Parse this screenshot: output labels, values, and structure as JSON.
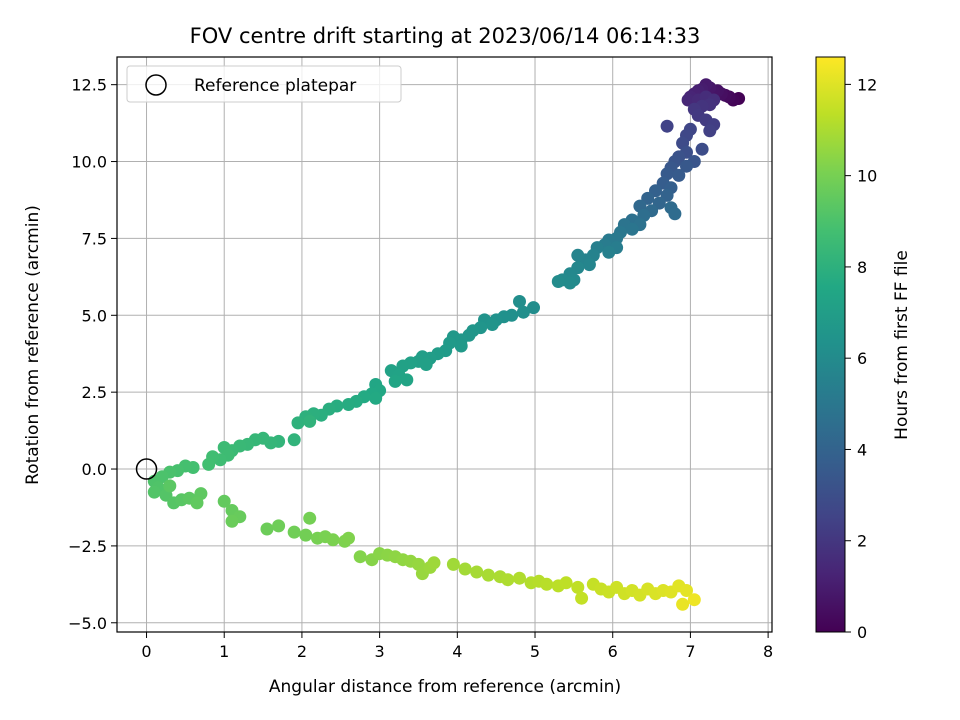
{
  "chart_data": {
    "type": "scatter",
    "title": "FOV centre drift starting at 2023/06/14 06:14:33",
    "xlabel": "Angular distance from reference (arcmin)",
    "ylabel": "Rotation from reference (arcmin)",
    "xlim": [
      -0.38,
      8.05
    ],
    "ylim": [
      -5.3,
      13.4
    ],
    "xticks": [
      0,
      1,
      2,
      3,
      4,
      5,
      6,
      7,
      8
    ],
    "xtick_labels": [
      "0",
      "1",
      "2",
      "3",
      "4",
      "5",
      "6",
      "7",
      "8"
    ],
    "yticks": [
      -5.0,
      -2.5,
      0.0,
      2.5,
      5.0,
      7.5,
      10.0,
      12.5
    ],
    "ytick_labels": [
      "−5.0",
      "−2.5",
      "0.0",
      "2.5",
      "5.0",
      "7.5",
      "10.0",
      "12.5"
    ],
    "grid": true,
    "legend": {
      "position": "top-left",
      "entries": [
        {
          "label": "Reference platepar",
          "marker": "open-circle",
          "color": "#000000"
        }
      ]
    },
    "reference_point": {
      "x": 0,
      "y": 0
    },
    "colorbar": {
      "label": "Hours from first FF file",
      "colormap": "viridis",
      "range": [
        0,
        12.6
      ],
      "ticks": [
        0,
        2,
        4,
        6,
        8,
        10,
        12
      ],
      "tick_labels": [
        "0",
        "2",
        "4",
        "6",
        "8",
        "10",
        "12"
      ]
    },
    "series": [
      {
        "points": [
          [
            7.62,
            12.05,
            0.05
          ],
          [
            7.55,
            12.0,
            0.15
          ],
          [
            7.5,
            12.1,
            0.25
          ],
          [
            7.45,
            12.15,
            0.35
          ],
          [
            7.4,
            12.2,
            0.5
          ],
          [
            7.35,
            12.3,
            0.6
          ],
          [
            7.3,
            12.25,
            0.7
          ],
          [
            7.25,
            12.4,
            0.8
          ],
          [
            7.2,
            12.5,
            0.9
          ],
          [
            7.15,
            12.35,
            1.0
          ],
          [
            7.1,
            12.3,
            1.1
          ],
          [
            7.05,
            12.2,
            1.2
          ],
          [
            7.0,
            12.1,
            1.3
          ],
          [
            6.97,
            12.0,
            1.4
          ],
          [
            7.1,
            12.0,
            1.5
          ],
          [
            7.2,
            12.1,
            1.6
          ],
          [
            7.3,
            12.0,
            1.7
          ],
          [
            7.25,
            11.85,
            1.8
          ],
          [
            7.15,
            11.8,
            1.9
          ],
          [
            7.05,
            11.7,
            2.0
          ],
          [
            7.1,
            11.5,
            2.1
          ],
          [
            7.2,
            11.35,
            2.2
          ],
          [
            7.3,
            11.2,
            2.3
          ],
          [
            7.25,
            11.0,
            2.4
          ],
          [
            6.7,
            11.15,
            2.5
          ],
          [
            7.0,
            11.05,
            2.6
          ],
          [
            6.95,
            10.85,
            2.7
          ],
          [
            6.9,
            10.6,
            2.85
          ],
          [
            7.15,
            10.4,
            2.95
          ],
          [
            6.95,
            10.3,
            3.05
          ],
          [
            6.85,
            10.15,
            3.15
          ],
          [
            6.8,
            10.0,
            3.25
          ],
          [
            7.05,
            10.0,
            3.3
          ],
          [
            6.75,
            9.8,
            3.4
          ],
          [
            6.95,
            9.85,
            3.45
          ],
          [
            6.7,
            9.6,
            3.55
          ],
          [
            6.85,
            9.55,
            3.6
          ],
          [
            6.65,
            9.3,
            3.7
          ],
          [
            6.75,
            9.15,
            3.8
          ],
          [
            6.55,
            9.05,
            3.9
          ],
          [
            6.7,
            8.9,
            4.0
          ],
          [
            6.45,
            8.8,
            4.05
          ],
          [
            6.6,
            8.65,
            4.15
          ],
          [
            6.35,
            8.55,
            4.25
          ],
          [
            6.5,
            8.4,
            4.35
          ],
          [
            6.75,
            8.5,
            4.4
          ],
          [
            6.8,
            8.3,
            4.45
          ],
          [
            6.4,
            8.25,
            4.55
          ],
          [
            6.25,
            8.1,
            4.65
          ],
          [
            6.35,
            7.95,
            4.75
          ],
          [
            6.15,
            7.95,
            4.85
          ],
          [
            6.25,
            7.8,
            4.9
          ],
          [
            6.1,
            7.7,
            5.0
          ],
          [
            6.05,
            7.5,
            5.1
          ],
          [
            5.95,
            7.45,
            5.15
          ],
          [
            5.9,
            7.3,
            5.25
          ],
          [
            6.05,
            7.2,
            5.3
          ],
          [
            5.8,
            7.2,
            5.4
          ],
          [
            5.95,
            7.05,
            5.45
          ],
          [
            5.75,
            6.95,
            5.55
          ],
          [
            5.65,
            6.8,
            5.6
          ],
          [
            5.55,
            6.95,
            5.65
          ],
          [
            5.7,
            6.65,
            5.7
          ],
          [
            5.55,
            6.55,
            5.8
          ],
          [
            5.45,
            6.35,
            5.85
          ],
          [
            5.5,
            6.15,
            5.9
          ],
          [
            5.35,
            6.15,
            5.95
          ],
          [
            5.45,
            6.05,
            6.0
          ],
          [
            5.3,
            6.1,
            6.05
          ],
          [
            4.98,
            5.25,
            6.1
          ],
          [
            4.8,
            5.45,
            6.15
          ],
          [
            4.85,
            5.1,
            6.2
          ],
          [
            4.7,
            5.0,
            6.25
          ],
          [
            4.6,
            4.95,
            6.3
          ],
          [
            4.5,
            4.85,
            6.35
          ],
          [
            4.35,
            4.85,
            6.4
          ],
          [
            4.45,
            4.7,
            6.45
          ],
          [
            4.3,
            4.6,
            6.5
          ],
          [
            4.2,
            4.5,
            6.55
          ],
          [
            4.15,
            4.35,
            6.6
          ],
          [
            4.05,
            4.2,
            6.65
          ],
          [
            3.95,
            4.3,
            6.7
          ],
          [
            4.05,
            4.0,
            6.75
          ],
          [
            3.9,
            4.1,
            6.8
          ],
          [
            3.85,
            3.85,
            6.85
          ],
          [
            3.75,
            3.75,
            6.9
          ],
          [
            3.65,
            3.6,
            6.95
          ],
          [
            3.55,
            3.65,
            7.0
          ],
          [
            3.5,
            3.5,
            7.05
          ],
          [
            3.6,
            3.4,
            7.1
          ],
          [
            3.4,
            3.45,
            7.15
          ],
          [
            3.3,
            3.35,
            7.2
          ],
          [
            3.15,
            3.2,
            7.25
          ],
          [
            3.25,
            3.05,
            7.3
          ],
          [
            3.35,
            2.9,
            7.35
          ],
          [
            3.2,
            2.85,
            7.4
          ],
          [
            2.95,
            2.75,
            7.45
          ],
          [
            3.0,
            2.55,
            7.5
          ],
          [
            2.9,
            2.45,
            7.55
          ],
          [
            2.95,
            2.3,
            7.6
          ],
          [
            2.8,
            2.35,
            7.65
          ],
          [
            2.7,
            2.2,
            7.7
          ],
          [
            2.6,
            2.1,
            7.75
          ],
          [
            2.45,
            2.05,
            7.8
          ],
          [
            2.35,
            1.95,
            7.85
          ],
          [
            2.25,
            1.75,
            7.9
          ],
          [
            2.15,
            1.8,
            7.95
          ],
          [
            2.05,
            1.7,
            8.0
          ],
          [
            1.95,
            1.5,
            8.05
          ],
          [
            2.1,
            1.55,
            8.1
          ],
          [
            1.9,
            0.95,
            8.15
          ],
          [
            1.7,
            0.9,
            8.2
          ],
          [
            1.6,
            0.85,
            8.25
          ],
          [
            1.5,
            1.0,
            8.3
          ],
          [
            1.4,
            0.95,
            8.35
          ],
          [
            1.3,
            0.8,
            8.4
          ],
          [
            1.2,
            0.75,
            8.45
          ],
          [
            1.1,
            0.6,
            8.5
          ],
          [
            1.0,
            0.7,
            8.55
          ],
          [
            1.05,
            0.45,
            8.6
          ],
          [
            0.95,
            0.3,
            8.65
          ],
          [
            0.85,
            0.4,
            8.7
          ],
          [
            0.8,
            0.15,
            8.75
          ],
          [
            0.6,
            0.05,
            8.8
          ],
          [
            0.5,
            0.1,
            8.85
          ],
          [
            0.4,
            -0.05,
            8.9
          ],
          [
            0.3,
            -0.1,
            8.95
          ],
          [
            0.2,
            -0.25,
            9.0
          ],
          [
            0.1,
            -0.4,
            9.05
          ],
          [
            0.15,
            -0.6,
            9.1
          ],
          [
            0.1,
            -0.75,
            9.15
          ],
          [
            0.25,
            -0.85,
            9.2
          ],
          [
            0.35,
            -1.1,
            9.25
          ],
          [
            0.45,
            -1.0,
            9.3
          ],
          [
            0.3,
            -0.55,
            9.35
          ],
          [
            0.55,
            -0.95,
            9.4
          ],
          [
            0.7,
            -0.8,
            9.45
          ],
          [
            0.65,
            -1.1,
            9.5
          ],
          [
            1.0,
            -1.05,
            9.55
          ],
          [
            1.1,
            -1.35,
            9.6
          ],
          [
            1.2,
            -1.55,
            9.65
          ],
          [
            1.1,
            -1.7,
            9.7
          ],
          [
            1.55,
            -1.95,
            9.75
          ],
          [
            1.7,
            -1.85,
            9.8
          ],
          [
            1.9,
            -2.05,
            9.85
          ],
          [
            2.05,
            -2.15,
            9.9
          ],
          [
            2.1,
            -1.6,
            9.95
          ],
          [
            2.2,
            -2.25,
            10.0
          ],
          [
            2.3,
            -2.2,
            10.05
          ],
          [
            2.4,
            -2.3,
            10.1
          ],
          [
            2.55,
            -2.35,
            10.15
          ],
          [
            2.6,
            -2.25,
            10.2
          ],
          [
            2.75,
            -2.85,
            10.25
          ],
          [
            2.9,
            -2.95,
            10.3
          ],
          [
            3.0,
            -2.75,
            10.35
          ],
          [
            3.1,
            -2.8,
            10.4
          ],
          [
            3.2,
            -2.85,
            10.45
          ],
          [
            3.3,
            -2.95,
            10.5
          ],
          [
            3.4,
            -3.0,
            10.55
          ],
          [
            3.5,
            -3.1,
            10.6
          ],
          [
            3.55,
            -3.4,
            10.65
          ],
          [
            3.65,
            -3.2,
            10.7
          ],
          [
            3.7,
            -3.05,
            10.75
          ],
          [
            3.95,
            -3.1,
            10.8
          ],
          [
            4.1,
            -3.25,
            10.85
          ],
          [
            4.25,
            -3.35,
            10.9
          ],
          [
            4.4,
            -3.45,
            10.95
          ],
          [
            4.55,
            -3.5,
            11.0
          ],
          [
            4.65,
            -3.6,
            11.05
          ],
          [
            4.8,
            -3.55,
            11.1
          ],
          [
            4.95,
            -3.7,
            11.15
          ],
          [
            5.05,
            -3.65,
            11.2
          ],
          [
            5.15,
            -3.75,
            11.25
          ],
          [
            5.3,
            -3.8,
            11.3
          ],
          [
            5.4,
            -3.7,
            11.35
          ],
          [
            5.55,
            -3.85,
            11.4
          ],
          [
            5.6,
            -4.2,
            11.45
          ],
          [
            5.75,
            -3.75,
            11.5
          ],
          [
            5.85,
            -3.9,
            11.55
          ],
          [
            5.95,
            -4.0,
            11.6
          ],
          [
            6.05,
            -3.85,
            11.65
          ],
          [
            6.15,
            -4.05,
            11.7
          ],
          [
            6.25,
            -3.95,
            11.75
          ],
          [
            6.35,
            -4.1,
            11.8
          ],
          [
            6.45,
            -3.9,
            11.85
          ],
          [
            6.55,
            -4.05,
            11.9
          ],
          [
            6.65,
            -3.95,
            11.95
          ],
          [
            6.75,
            -4.0,
            12.0
          ],
          [
            6.85,
            -3.8,
            12.05
          ],
          [
            6.95,
            -3.95,
            12.1
          ],
          [
            6.9,
            -4.4,
            12.2
          ],
          [
            7.05,
            -4.25,
            12.3
          ]
        ]
      }
    ]
  }
}
